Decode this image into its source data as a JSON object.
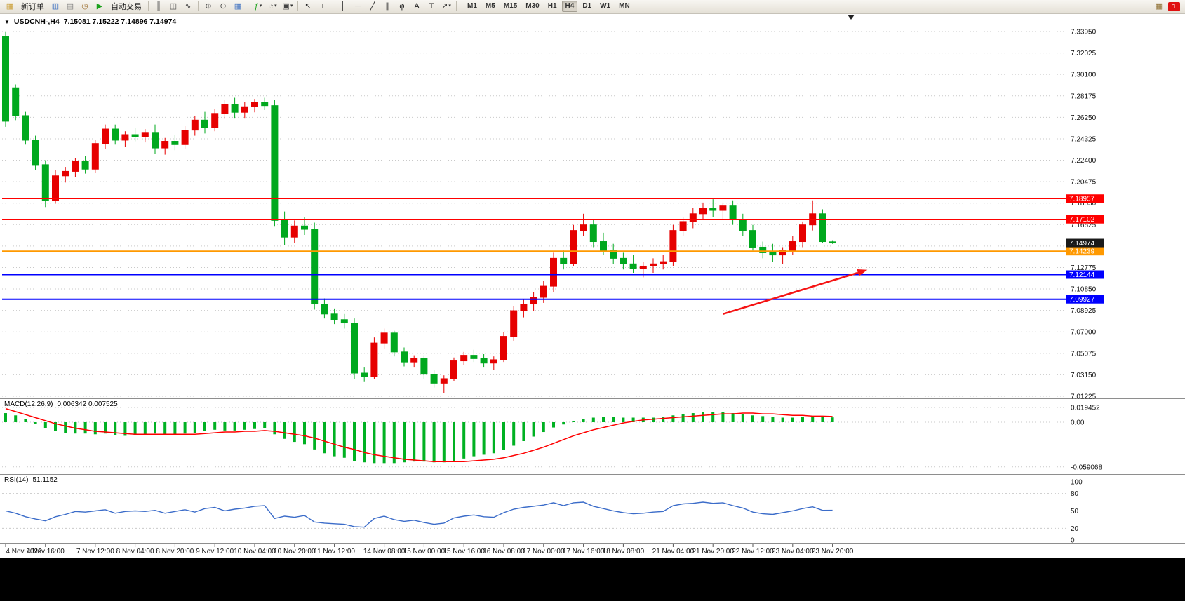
{
  "toolbar": {
    "items": [
      {
        "type": "icon",
        "name": "new-order-icon",
        "glyph": "▦",
        "color": "#c99b2e"
      },
      {
        "type": "button",
        "name": "new-order-button",
        "label": "新订单"
      },
      {
        "type": "icon",
        "name": "chart-windows-icon",
        "glyph": "▥",
        "color": "#3a6ec0"
      },
      {
        "type": "icon",
        "name": "profiles-icon",
        "glyph": "▤",
        "color": "#777777"
      },
      {
        "type": "icon",
        "name": "alerts-icon",
        "glyph": "◷",
        "color": "#9a6a28"
      },
      {
        "type": "icon",
        "name": "autotrading-icon",
        "glyph": "▶",
        "color": "#1ba11b"
      },
      {
        "type": "button",
        "name": "autotrading-button",
        "label": "自动交易"
      },
      {
        "type": "sep"
      },
      {
        "type": "icon",
        "name": "bar-chart-icon",
        "glyph": "╫",
        "color": "#444444"
      },
      {
        "type": "icon",
        "name": "candlestick-chart-icon",
        "glyph": "◫",
        "color": "#444444"
      },
      {
        "type": "icon",
        "name": "line-chart-icon",
        "glyph": "∿",
        "color": "#444444"
      },
      {
        "type": "sep"
      },
      {
        "type": "icon",
        "name": "zoom-in-icon",
        "glyph": "⊕",
        "color": "#444444"
      },
      {
        "type": "icon",
        "name": "zoom-out-icon",
        "glyph": "⊖",
        "color": "#444444"
      },
      {
        "type": "icon",
        "name": "tile-windows-icon",
        "glyph": "▦",
        "color": "#3a6ec0"
      },
      {
        "type": "sep"
      },
      {
        "type": "icon",
        "name": "indicators-icon",
        "glyph": "ƒ",
        "color": "#1ba11b",
        "caret": true
      },
      {
        "type": "icon",
        "name": "periods-icon",
        "glyph": "◔",
        "color": "#444444",
        "caret": true
      },
      {
        "type": "icon",
        "name": "templates-icon",
        "glyph": "▣",
        "color": "#444444",
        "caret": true
      },
      {
        "type": "sep"
      },
      {
        "type": "icon",
        "name": "cursor-icon",
        "glyph": "↖",
        "color": "#222222"
      },
      {
        "type": "icon",
        "name": "crosshair-icon",
        "glyph": "+",
        "color": "#222222"
      },
      {
        "type": "sep"
      },
      {
        "type": "icon",
        "name": "vertical-line-icon",
        "glyph": "│",
        "color": "#222222"
      },
      {
        "type": "icon",
        "name": "horizontal-line-icon",
        "glyph": "─",
        "color": "#222222"
      },
      {
        "type": "icon",
        "name": "trendline-icon",
        "glyph": "╱",
        "color": "#222222"
      },
      {
        "type": "icon",
        "name": "channel-icon",
        "glyph": "∥",
        "color": "#222222"
      },
      {
        "type": "icon",
        "name": "fibonacci-icon",
        "glyph": "φ",
        "color": "#222222"
      },
      {
        "type": "icon",
        "name": "text-icon",
        "glyph": "A",
        "color": "#222222"
      },
      {
        "type": "icon",
        "name": "label-icon",
        "glyph": "T",
        "color": "#222222"
      },
      {
        "type": "icon",
        "name": "arrows-icon",
        "glyph": "↗",
        "color": "#222222",
        "caret": true
      },
      {
        "type": "sep"
      }
    ],
    "timeframes": [
      "M1",
      "M5",
      "M15",
      "M30",
      "H1",
      "H4",
      "D1",
      "W1",
      "MN"
    ],
    "active_timeframe": "H4",
    "right_items": [
      {
        "name": "calendar-icon",
        "glyph": "▦",
        "color": "#8a6a2a"
      }
    ],
    "notification_badge": "1"
  },
  "chart": {
    "dropdown_glyph": "▼",
    "symbol_period": "USDCNH-,H4",
    "ohlc": "7.15081 7.15222 7.14896 7.14974"
  },
  "indicators": {
    "macd_label": "MACD(12,26,9)",
    "macd_values": "0.006342 0.007525",
    "rsi_label": "RSI(14)",
    "rsi_value": "51.1152"
  },
  "chart_data": {
    "type": "candlestick",
    "symbol": "USDCNH-",
    "timeframe": "H4",
    "current_bar": {
      "open": 7.15081,
      "high": 7.15222,
      "low": 7.14896,
      "close": 7.14974
    },
    "up_color_convention": "red-up-green-down",
    "y_axis": {
      "values": [
        7.3395,
        7.32025,
        7.301,
        7.28175,
        7.2625,
        7.24325,
        7.224,
        7.20475,
        7.1855,
        7.16625,
        7.147,
        7.12775,
        7.1085,
        7.08925,
        7.07,
        7.05075,
        7.0315,
        7.01225
      ]
    },
    "candles": [
      [
        7.335,
        7.3395,
        7.254,
        7.259
      ],
      [
        7.289,
        7.292,
        7.26,
        7.264
      ],
      [
        7.264,
        7.268,
        7.238,
        7.242
      ],
      [
        7.242,
        7.246,
        7.215,
        7.22
      ],
      [
        7.22,
        7.224,
        7.182,
        7.188
      ],
      [
        7.188,
        7.215,
        7.185,
        7.21
      ],
      [
        7.21,
        7.218,
        7.204,
        7.214
      ],
      [
        7.214,
        7.226,
        7.209,
        7.223
      ],
      [
        7.223,
        7.228,
        7.212,
        7.216
      ],
      [
        7.216,
        7.242,
        7.213,
        7.239
      ],
      [
        7.239,
        7.256,
        7.234,
        7.252
      ],
      [
        7.252,
        7.256,
        7.238,
        7.242
      ],
      [
        7.242,
        7.25,
        7.236,
        7.247
      ],
      [
        7.247,
        7.253,
        7.241,
        7.245
      ],
      [
        7.245,
        7.252,
        7.24,
        7.249
      ],
      [
        7.249,
        7.256,
        7.23,
        7.235
      ],
      [
        7.235,
        7.244,
        7.229,
        7.241
      ],
      [
        7.241,
        7.247,
        7.233,
        7.238
      ],
      [
        7.238,
        7.255,
        7.234,
        7.251
      ],
      [
        7.251,
        7.264,
        7.246,
        7.26
      ],
      [
        7.26,
        7.268,
        7.248,
        7.253
      ],
      [
        7.253,
        7.27,
        7.25,
        7.266
      ],
      [
        7.266,
        7.278,
        7.261,
        7.274
      ],
      [
        7.274,
        7.28,
        7.262,
        7.267
      ],
      [
        7.267,
        7.276,
        7.262,
        7.272
      ],
      [
        7.272,
        7.279,
        7.267,
        7.276
      ],
      [
        7.276,
        7.28,
        7.269,
        7.273
      ],
      [
        7.273,
        7.278,
        7.165,
        7.17
      ],
      [
        7.17,
        7.178,
        7.148,
        7.155
      ],
      [
        7.155,
        7.17,
        7.15,
        7.165
      ],
      [
        7.165,
        7.173,
        7.157,
        7.162
      ],
      [
        7.162,
        7.168,
        7.09,
        7.095
      ],
      [
        7.095,
        7.1,
        7.082,
        7.086
      ],
      [
        7.086,
        7.091,
        7.077,
        7.081
      ],
      [
        7.081,
        7.086,
        7.073,
        7.078
      ],
      [
        7.078,
        7.082,
        7.028,
        7.033
      ],
      [
        7.033,
        7.038,
        7.025,
        7.03
      ],
      [
        7.03,
        7.065,
        7.028,
        7.06
      ],
      [
        7.06,
        7.073,
        7.055,
        7.069
      ],
      [
        7.069,
        7.071,
        7.048,
        7.052
      ],
      [
        7.052,
        7.056,
        7.039,
        7.043
      ],
      [
        7.043,
        7.049,
        7.038,
        7.046
      ],
      [
        7.046,
        7.049,
        7.028,
        7.032
      ],
      [
        7.032,
        7.036,
        7.02,
        7.024
      ],
      [
        7.024,
        7.031,
        7.015,
        7.028
      ],
      [
        7.028,
        7.047,
        7.026,
        7.044
      ],
      [
        7.044,
        7.052,
        7.04,
        7.049
      ],
      [
        7.049,
        7.054,
        7.043,
        7.046
      ],
      [
        7.046,
        7.05,
        7.038,
        7.042
      ],
      [
        7.042,
        7.048,
        7.036,
        7.045
      ],
      [
        7.045,
        7.07,
        7.043,
        7.066
      ],
      [
        7.066,
        7.093,
        7.062,
        7.089
      ],
      [
        7.089,
        7.099,
        7.083,
        7.095
      ],
      [
        7.095,
        7.106,
        7.089,
        7.101
      ],
      [
        7.101,
        7.116,
        7.096,
        7.111
      ],
      [
        7.111,
        7.141,
        7.106,
        7.136
      ],
      [
        7.136,
        7.143,
        7.126,
        7.131
      ],
      [
        7.131,
        7.166,
        7.129,
        7.161
      ],
      [
        7.161,
        7.176,
        7.156,
        7.166
      ],
      [
        7.166,
        7.171,
        7.146,
        7.151
      ],
      [
        7.151,
        7.159,
        7.139,
        7.143
      ],
      [
        7.143,
        7.149,
        7.131,
        7.136
      ],
      [
        7.136,
        7.141,
        7.126,
        7.131
      ],
      [
        7.131,
        7.139,
        7.123,
        7.127
      ],
      [
        7.127,
        7.133,
        7.119,
        7.129
      ],
      [
        7.129,
        7.136,
        7.123,
        7.131
      ],
      [
        7.131,
        7.139,
        7.126,
        7.133
      ],
      [
        7.133,
        7.166,
        7.129,
        7.161
      ],
      [
        7.161,
        7.173,
        7.156,
        7.169
      ],
      [
        7.169,
        7.181,
        7.163,
        7.176
      ],
      [
        7.176,
        7.186,
        7.171,
        7.181
      ],
      [
        7.181,
        7.189,
        7.173,
        7.179
      ],
      [
        7.179,
        7.186,
        7.171,
        7.183
      ],
      [
        7.183,
        7.188,
        7.166,
        7.171
      ],
      [
        7.171,
        7.176,
        7.156,
        7.161
      ],
      [
        7.161,
        7.166,
        7.143,
        7.146
      ],
      [
        7.146,
        7.151,
        7.136,
        7.141
      ],
      [
        7.141,
        7.149,
        7.133,
        7.139
      ],
      [
        7.139,
        7.146,
        7.131,
        7.143
      ],
      [
        7.143,
        7.156,
        7.139,
        7.151
      ],
      [
        7.151,
        7.169,
        7.146,
        7.166
      ],
      [
        7.166,
        7.188,
        7.161,
        7.176
      ],
      [
        7.176,
        7.18,
        7.15,
        7.151
      ],
      [
        7.15081,
        7.15222,
        7.14896,
        7.14974
      ]
    ],
    "time_labels": [
      [
        "4 Nov 2022",
        0
      ],
      [
        "4 Nov 16:00",
        4
      ],
      [
        "7 Nov 12:00",
        9
      ],
      [
        "8 Nov 04:00",
        13
      ],
      [
        "8 Nov 20:00",
        17
      ],
      [
        "9 Nov 12:00",
        21
      ],
      [
        "10 Nov 04:00",
        25
      ],
      [
        "10 Nov 20:00",
        29
      ],
      [
        "11 Nov 12:00",
        33
      ],
      [
        "14 Nov 08:00",
        38
      ],
      [
        "15 Nov 00:00",
        42
      ],
      [
        "15 Nov 16:00",
        46
      ],
      [
        "16 Nov 08:00",
        50
      ],
      [
        "17 Nov 00:00",
        54
      ],
      [
        "17 Nov 16:00",
        58
      ],
      [
        "18 Nov 08:00",
        62
      ],
      [
        "21 Nov 04:00",
        67
      ],
      [
        "21 Nov 20:00",
        71
      ],
      [
        "22 Nov 12:00",
        75
      ],
      [
        "23 Nov 04:00",
        79
      ],
      [
        "23 Nov 20:00",
        83
      ]
    ],
    "h_lines": [
      {
        "value": 7.18957,
        "color": "#ff0000",
        "width": 1.4
      },
      {
        "value": 7.17102,
        "color": "#ff0000",
        "width": 1.4
      },
      {
        "value": 7.14239,
        "color": "#ff9900",
        "width": 2
      },
      {
        "value": 7.12144,
        "color": "#0000ff",
        "width": 2
      },
      {
        "value": 7.09927,
        "color": "#0000ff",
        "width": 2
      }
    ],
    "current_price": 7.14974,
    "arrow": {
      "from_index": 72,
      "from_price": 7.086,
      "to_index": 86.5,
      "to_price": 7.1257
    },
    "macd": {
      "label": "MACD(12,26,9)",
      "main_value": 0.006342,
      "signal_value": 0.007525,
      "axis_labels": [
        "0.019452",
        "0.00",
        "-0.059068"
      ],
      "axis_values": [
        0.019452,
        0,
        -0.059068
      ],
      "histogram": [
        0.012,
        0.009,
        0.004,
        -0.002,
        -0.008,
        -0.012,
        -0.014,
        -0.015,
        -0.015,
        -0.016,
        -0.015,
        -0.017,
        -0.018,
        -0.017,
        -0.016,
        -0.015,
        -0.016,
        -0.017,
        -0.015,
        -0.014,
        -0.012,
        -0.01,
        -0.011,
        -0.011,
        -0.01,
        -0.009,
        -0.008,
        -0.016,
        -0.022,
        -0.026,
        -0.029,
        -0.036,
        -0.041,
        -0.045,
        -0.047,
        -0.051,
        -0.053,
        -0.054,
        -0.054,
        -0.054,
        -0.053,
        -0.052,
        -0.052,
        -0.053,
        -0.053,
        -0.051,
        -0.048,
        -0.045,
        -0.043,
        -0.041,
        -0.037,
        -0.031,
        -0.025,
        -0.019,
        -0.013,
        -0.007,
        -0.003,
        0.001,
        0.004,
        0.006,
        0.007,
        0.007,
        0.006,
        0.006,
        0.006,
        0.006,
        0.007,
        0.009,
        0.011,
        0.012,
        0.013,
        0.013,
        0.013,
        0.012,
        0.011,
        0.009,
        0.008,
        0.007,
        0.006,
        0.006,
        0.007,
        0.008,
        0.007,
        0.006342
      ],
      "signal": [
        0.018,
        0.014,
        0.01,
        0.006,
        0.002,
        -0.002,
        -0.005,
        -0.008,
        -0.01,
        -0.012,
        -0.013,
        -0.014,
        -0.015,
        -0.016,
        -0.016,
        -0.016,
        -0.016,
        -0.016,
        -0.016,
        -0.016,
        -0.015,
        -0.014,
        -0.013,
        -0.013,
        -0.012,
        -0.012,
        -0.011,
        -0.012,
        -0.014,
        -0.016,
        -0.018,
        -0.021,
        -0.025,
        -0.029,
        -0.033,
        -0.036,
        -0.04,
        -0.043,
        -0.045,
        -0.047,
        -0.049,
        -0.05,
        -0.051,
        -0.052,
        -0.052,
        -0.052,
        -0.052,
        -0.051,
        -0.05,
        -0.049,
        -0.047,
        -0.044,
        -0.041,
        -0.037,
        -0.033,
        -0.028,
        -0.023,
        -0.018,
        -0.014,
        -0.01,
        -0.007,
        -0.004,
        -0.001,
        0.001,
        0.003,
        0.004,
        0.005,
        0.006,
        0.007,
        0.008,
        0.009,
        0.01,
        0.011,
        0.011,
        0.012,
        0.012,
        0.011,
        0.011,
        0.01,
        0.009,
        0.009,
        0.008,
        0.008,
        0.007525
      ]
    },
    "rsi": {
      "label": "RSI(14)",
      "current": 51.1152,
      "axis_labels": [
        "100",
        "80",
        "50",
        "20",
        "0"
      ],
      "axis_values": [
        100,
        80,
        50,
        20,
        0
      ],
      "level_lines": [
        80,
        50,
        20
      ],
      "values": [
        50,
        46,
        40,
        36,
        33,
        40,
        44,
        49,
        48,
        50,
        52,
        46,
        49,
        50,
        49,
        51,
        46,
        49,
        52,
        48,
        54,
        56,
        50,
        53,
        55,
        58,
        59,
        37,
        41,
        39,
        42,
        31,
        29,
        28,
        27,
        23,
        22,
        37,
        41,
        35,
        32,
        34,
        30,
        27,
        29,
        38,
        41,
        43,
        40,
        39,
        47,
        53,
        56,
        58,
        60,
        64,
        59,
        64,
        65,
        58,
        54,
        50,
        47,
        45,
        46,
        48,
        49,
        59,
        62,
        63,
        65,
        63,
        64,
        59,
        55,
        48,
        45,
        44,
        47,
        50,
        54,
        57,
        51,
        51.1152
      ]
    }
  },
  "colors": {
    "bull": "#e60000",
    "bear": "#00a81e",
    "macd_hist": "#00b122",
    "macd_signal": "#ff0000",
    "rsi_line": "#3b6cc9",
    "grid": "#c9c9c9",
    "price_line": "#4d4d4d",
    "tag_current": "#1a1a1a",
    "arrow": "#f51414"
  }
}
